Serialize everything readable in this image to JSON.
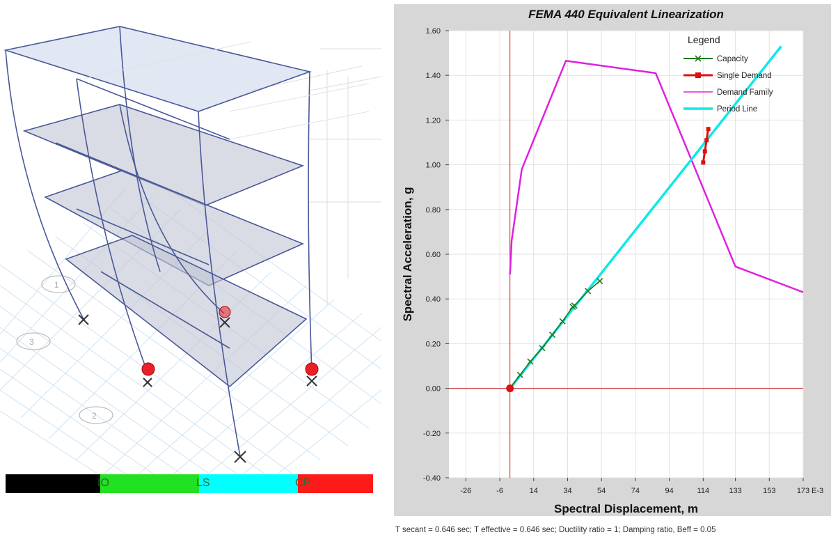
{
  "model_view": {
    "legend_labels": [
      "IO",
      "LS",
      "CP"
    ],
    "legend_colors": [
      "#000000",
      "#22e022",
      "#00ffff",
      "#ff1a1a"
    ],
    "grid_labels": [
      "1",
      "2",
      "3"
    ]
  },
  "chart_data": {
    "type": "line",
    "title": "FEMA 440 Equivalent Linearization",
    "xlabel": "Spectral Displacement, m",
    "ylabel": "Spectral Acceleration, g",
    "x_unit_suffix": "E-3",
    "xlim": [
      -36,
      173
    ],
    "ylim": [
      -0.4,
      1.6
    ],
    "x_ticks": [
      "-26",
      "-6",
      "14",
      "34",
      "54",
      "74",
      "94",
      "114",
      "133",
      "153",
      "173"
    ],
    "y_ticks": [
      "-0.40",
      "-0.20",
      "0.00",
      "0.20",
      "0.40",
      "0.60",
      "0.80",
      "1.00",
      "1.20",
      "1.40",
      "1.60"
    ],
    "legend_title": "Legend",
    "legend_position": "top-right",
    "series": [
      {
        "name": "Capacity",
        "color": "#1e7a1e",
        "x": [
          0,
          6,
          12,
          19,
          25,
          31,
          37,
          38,
          46,
          53
        ],
        "y": [
          0,
          0.06,
          0.12,
          0.18,
          0.24,
          0.3,
          0.365,
          0.37,
          0.435,
          0.48
        ]
      },
      {
        "name": "Single Demand",
        "color": "#e01010",
        "x": [
          114,
          115,
          116,
          117
        ],
        "y": [
          1.01,
          1.06,
          1.11,
          1.16
        ]
      },
      {
        "name": "Demand Family",
        "color": "#e020e0",
        "x": [
          0,
          0.5,
          1,
          7,
          33,
          86,
          133,
          173
        ],
        "y": [
          0.51,
          0.58,
          0.66,
          0.98,
          1.465,
          1.41,
          0.545,
          0.43
        ]
      },
      {
        "name": "Period Line",
        "color": "#10e8e8",
        "x": [
          0,
          160
        ],
        "y": [
          0,
          1.53
        ]
      }
    ],
    "performance_point": {
      "x": 0,
      "y": 0
    }
  },
  "status": {
    "text": "T secant = 0.646 sec;  T effective = 0.646 sec;  Ductility ratio = 1;  Damping ratio, Beff = 0.05"
  }
}
